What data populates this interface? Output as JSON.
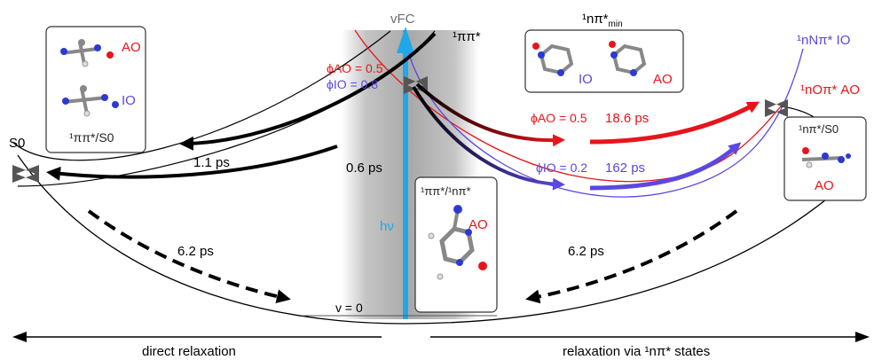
{
  "labels": {
    "vfc": "vFC",
    "pipi": "¹ππ*",
    "npi_min": "¹nπ*",
    "npi_min_sub": "min",
    "nN": "¹nNπ* IO",
    "nO": "¹nOπ* AO",
    "s0": "S0",
    "v0": "v = 0",
    "hv": "hν",
    "phi_ao_left": "ϕAO = 0.5",
    "phi_io_left": "ϕIO = 0.8",
    "phi_ao_right": "ϕAO = 0.5",
    "phi_io_right": "ϕIO = 0.2",
    "t_186": "18.6 ps",
    "t_162": "162 ps",
    "t_11": "1.1 ps",
    "t_06": "0.6 ps",
    "t_62_left": "6.2 ps",
    "t_62_right": "6.2 ps",
    "direct": "direct relaxation",
    "via": "relaxation via ¹nπ* states"
  },
  "insets": {
    "pipi_s0": {
      "ao": "AO",
      "io": "IO",
      "caption": "¹ππ*/S0"
    },
    "npi_min": {
      "io": "IO",
      "ao": "AO"
    },
    "pipi_npi": {
      "caption": "¹ππ*/¹nπ*",
      "ao": "AO"
    },
    "npi_s0": {
      "caption": "¹nπ*/S0",
      "ao": "AO"
    }
  },
  "colors": {
    "red": "#e8141b",
    "blue": "#5a48e0",
    "black": "#000000",
    "gray_band": "#b8b8b8",
    "cyan": "#1fa8e8",
    "gray_text": "#6d6d6d"
  }
}
